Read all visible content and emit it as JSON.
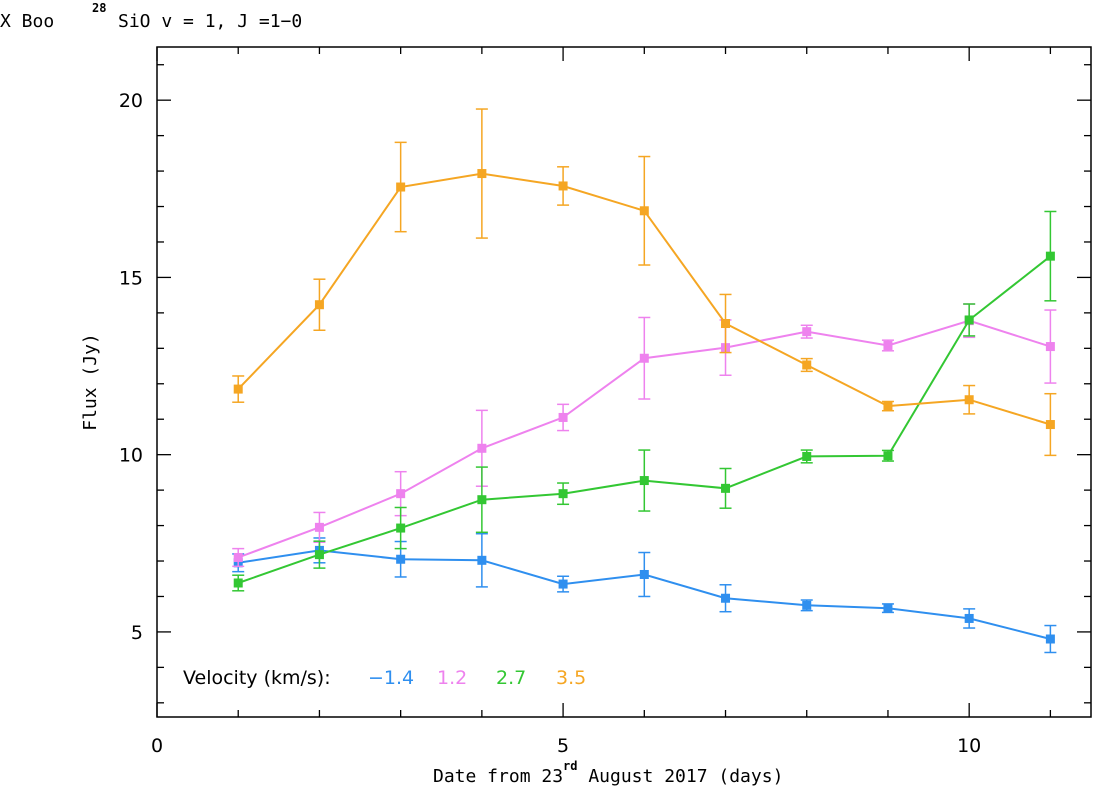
{
  "chart_data": {
    "type": "line",
    "title_parts": {
      "source": "X Boo",
      "isotope": "28",
      "molecule": "SiO v = 1, J =1−0"
    },
    "xlabel_parts": {
      "before": "Date from 23",
      "sup": "rd",
      "after": " August 2017 (days)"
    },
    "ylabel": "Flux (Jy)",
    "xlim": [
      0,
      11.5
    ],
    "ylim": [
      2.6,
      21.5
    ],
    "xticks": [
      0,
      5,
      10
    ],
    "yticks": [
      5,
      10,
      15,
      20
    ],
    "x_tick_labels": [
      "0",
      "5",
      "10"
    ],
    "y_tick_labels": [
      "5",
      "10",
      "15",
      "20"
    ],
    "x_minor_step": 1,
    "y_minor_step": 1,
    "grid": false,
    "legend": {
      "title": "Velocity (km/s):",
      "position": "bottom-left"
    },
    "x": [
      1,
      2,
      3,
      4,
      5,
      6,
      7,
      8,
      9,
      10,
      11
    ],
    "series": [
      {
        "name": "−1.4",
        "color": "#2f8fef",
        "values": [
          6.95,
          7.3,
          7.05,
          7.02,
          6.35,
          6.62,
          5.95,
          5.75,
          5.67,
          5.38,
          4.8
        ],
        "errors": [
          0.25,
          0.35,
          0.5,
          0.75,
          0.22,
          0.62,
          0.38,
          0.15,
          0.12,
          0.27,
          0.38
        ]
      },
      {
        "name": "1.2",
        "color": "#ee82ee",
        "values": [
          7.1,
          7.95,
          8.9,
          10.18,
          11.05,
          12.72,
          13.02,
          13.47,
          13.08,
          13.78,
          13.05
        ],
        "errors": [
          0.25,
          0.42,
          0.62,
          1.07,
          0.37,
          1.15,
          0.78,
          0.18,
          0.15,
          0.47,
          1.03
        ]
      },
      {
        "name": "2.7",
        "color": "#33c733",
        "values": [
          6.38,
          7.18,
          7.93,
          8.73,
          8.9,
          9.27,
          9.05,
          9.95,
          9.97,
          13.8,
          15.6
        ],
        "errors": [
          0.22,
          0.38,
          0.58,
          0.92,
          0.3,
          0.86,
          0.56,
          0.18,
          0.15,
          0.45,
          1.26
        ]
      },
      {
        "name": "3.5",
        "color": "#f5a623",
        "values": [
          11.85,
          14.23,
          17.55,
          17.93,
          17.58,
          16.88,
          13.7,
          12.53,
          11.37,
          11.55,
          10.85
        ],
        "errors": [
          0.37,
          0.72,
          1.26,
          1.82,
          0.54,
          1.53,
          0.82,
          0.18,
          0.13,
          0.4,
          0.87
        ]
      }
    ]
  }
}
